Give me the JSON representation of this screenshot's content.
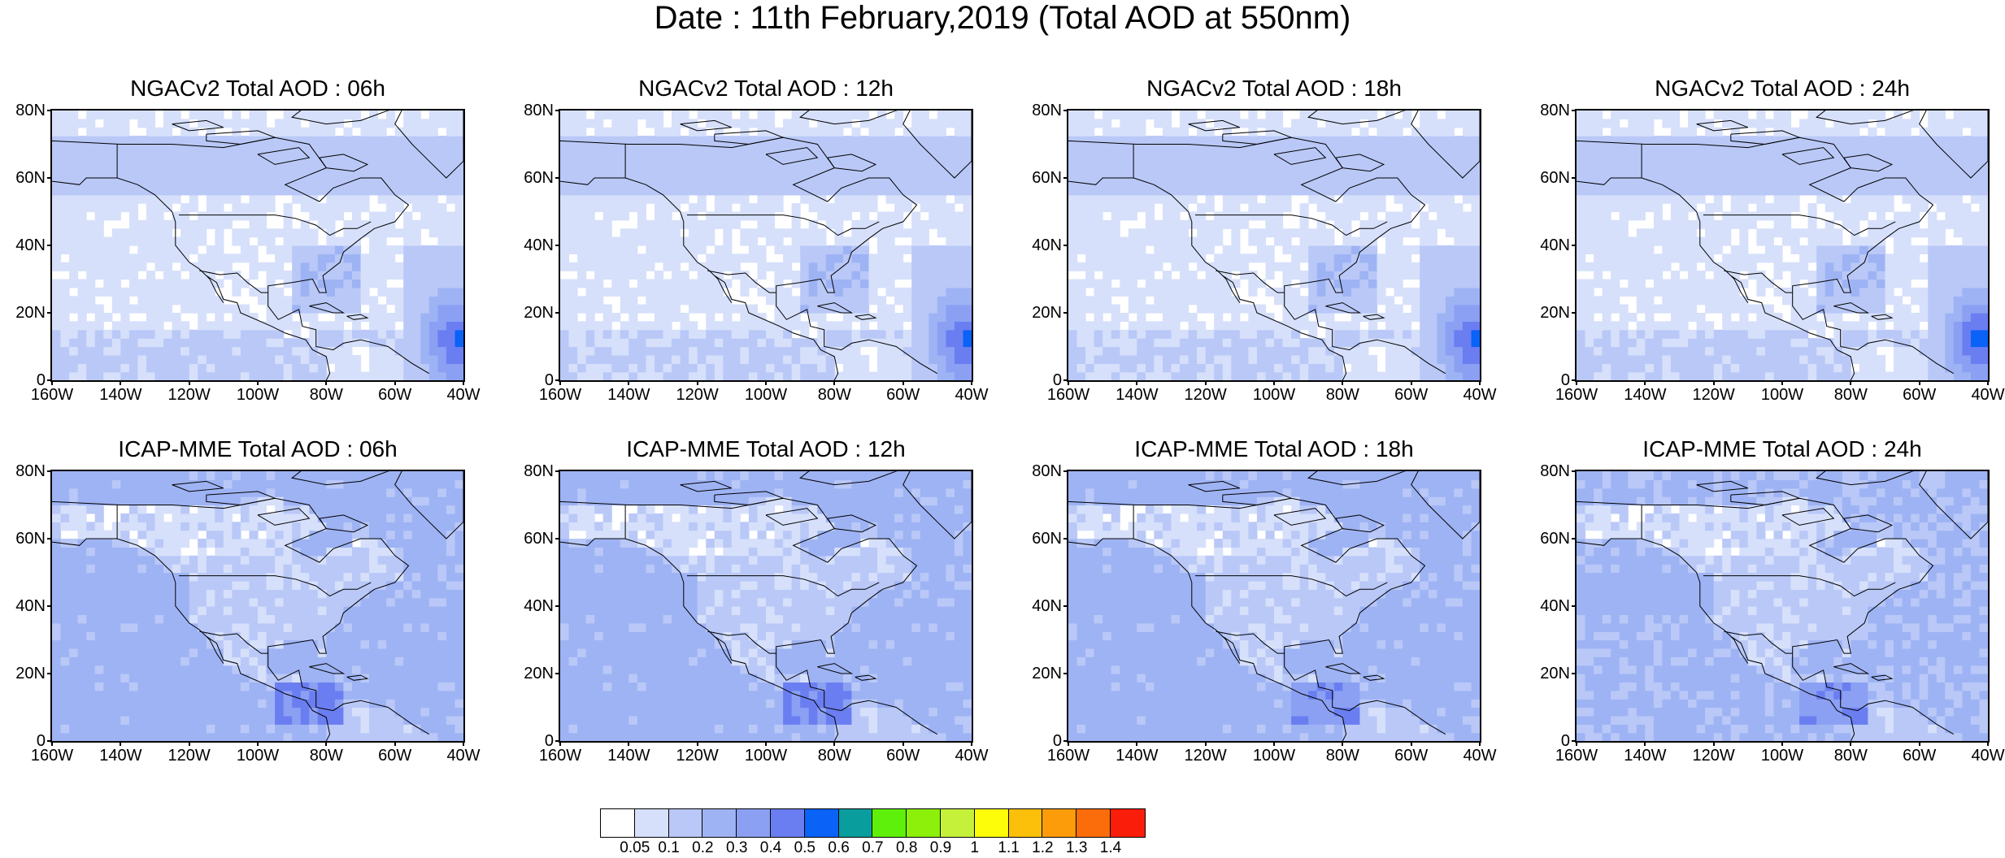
{
  "title": "Date : 11th February,2019 (Total AOD at 550nm)",
  "y_ticks": [
    "80N",
    "60N",
    "40N",
    "20N",
    "0"
  ],
  "x_ticks": [
    "160W",
    "140W",
    "120W",
    "100W",
    "80W",
    "60W",
    "40W"
  ],
  "panels": [
    {
      "title": "NGACv2 Total AOD : 06h",
      "model": "NGACv2",
      "hour": "06h",
      "ocean_level": 0.12,
      "mid_level": 0.06,
      "atlantic_level": 0.45,
      "caribbean_level": 0.2
    },
    {
      "title": "NGACv2 Total AOD : 12h",
      "model": "NGACv2",
      "hour": "12h",
      "ocean_level": 0.11,
      "mid_level": 0.06,
      "atlantic_level": 0.45,
      "caribbean_level": 0.2
    },
    {
      "title": "NGACv2 Total AOD : 18h",
      "model": "NGACv2",
      "hour": "18h",
      "ocean_level": 0.11,
      "mid_level": 0.06,
      "atlantic_level": 0.45,
      "caribbean_level": 0.2
    },
    {
      "title": "NGACv2 Total AOD : 24h",
      "model": "NGACv2",
      "hour": "24h",
      "ocean_level": 0.12,
      "mid_level": 0.06,
      "atlantic_level": 0.48,
      "caribbean_level": 0.2
    },
    {
      "title": "ICAP-MME Total AOD : 06h",
      "model": "ICAP-MME",
      "hour": "06h",
      "ocean_level": 0.22,
      "mid_level": 0.2,
      "atlantic_level": 0.3,
      "caribbean_level": 0.35
    },
    {
      "title": "ICAP-MME Total AOD : 12h",
      "model": "ICAP-MME",
      "hour": "12h",
      "ocean_level": 0.22,
      "mid_level": 0.2,
      "atlantic_level": 0.25,
      "caribbean_level": 0.35
    },
    {
      "title": "ICAP-MME Total AOD : 18h",
      "model": "ICAP-MME",
      "hour": "18h",
      "ocean_level": 0.22,
      "mid_level": 0.2,
      "atlantic_level": 0.25,
      "caribbean_level": 0.3
    },
    {
      "title": "ICAP-MME Total AOD : 24h",
      "model": "ICAP-MME",
      "hour": "24h",
      "ocean_level": 0.2,
      "mid_level": 0.2,
      "atlantic_level": 0.25,
      "caribbean_level": 0.3
    }
  ],
  "colorbar": {
    "colors": [
      "#ffffff",
      "#d6e0fb",
      "#b9c8f7",
      "#9eb3f4",
      "#8ba0f3",
      "#6a7ef1",
      "#0a62f6",
      "#0a9d9d",
      "#5ef00a",
      "#8cf00a",
      "#c6f13a",
      "#fdfd0a",
      "#fcbf0a",
      "#fc9c0a",
      "#fb6d0a",
      "#fa1e0a"
    ],
    "labels": [
      "0.05",
      "0.1",
      "0.2",
      "0.3",
      "0.4",
      "0.5",
      "0.6",
      "0.7",
      "0.8",
      "0.9",
      "1",
      "1.1",
      "1.2",
      "1.3",
      "1.4"
    ]
  }
}
